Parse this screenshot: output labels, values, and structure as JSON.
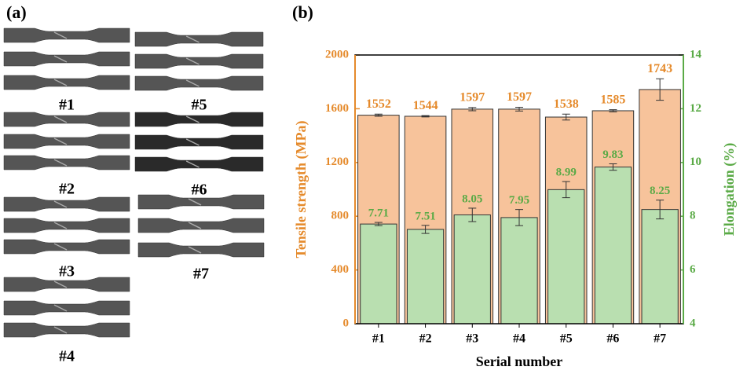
{
  "panel_labels": [
    "(a)",
    "(b)"
  ],
  "specimen_labels": [
    "#1",
    "#2",
    "#3",
    "#4",
    "#5",
    "#6",
    "#7"
  ],
  "chart_data": {
    "type": "bar",
    "x_label": "Serial number",
    "y_label": "Tensile strength (MPa)",
    "y2_label": "Elongation (%)",
    "categories": [
      "#1",
      "#2",
      "#3",
      "#4",
      "#5",
      "#6",
      "#7"
    ],
    "series": [
      {
        "color": "#f7c39b",
        "label_color": "#e58a2b",
        "values": [
          1552,
          1544,
          1597,
          1597,
          1538,
          1585,
          1743
        ],
        "errors": [
          8,
          5,
          12,
          14,
          22,
          8,
          80
        ]
      },
      {
        "color": "#b9dfb0",
        "label_color": "#5aaa46",
        "axis": "y2",
        "values": [
          7.71,
          7.51,
          8.05,
          7.95,
          8.99,
          9.83,
          8.25
        ],
        "errors": [
          0.06,
          0.15,
          0.25,
          0.3,
          0.3,
          0.12,
          0.35
        ]
      }
    ],
    "ylim": [
      0,
      2000
    ],
    "yticks": [
      0,
      400,
      800,
      1200,
      1600,
      2000
    ],
    "y2lim": [
      4,
      14
    ],
    "y2ticks": [
      4,
      6,
      8,
      10,
      12,
      14
    ]
  }
}
